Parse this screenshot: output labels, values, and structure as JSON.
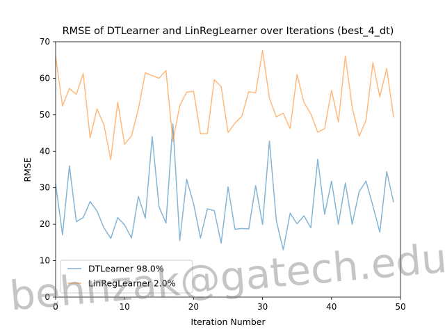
{
  "chart_data": {
    "type": "line",
    "title": "RMSE of DTLearner and LinRegLearner over Iterations (best_4_dt)",
    "xlabel": "Iteration Number",
    "ylabel": "RMSE",
    "xlim": [
      0,
      50
    ],
    "ylim": [
      0,
      70
    ],
    "xticks": [
      "0",
      "10",
      "20",
      "30",
      "40",
      "50"
    ],
    "yticks": [
      "0",
      "10",
      "20",
      "30",
      "40",
      "50",
      "60",
      "70"
    ],
    "grid": false,
    "legend_position": "lower-left",
    "watermark": "behnzak@gatech.edu",
    "x": [
      0,
      1,
      2,
      3,
      4,
      5,
      6,
      7,
      8,
      9,
      10,
      11,
      12,
      13,
      14,
      15,
      16,
      17,
      18,
      19,
      20,
      21,
      22,
      23,
      24,
      25,
      26,
      27,
      28,
      29,
      30,
      31,
      32,
      33,
      34,
      35,
      36,
      37,
      38,
      39,
      40,
      41,
      42,
      43,
      44,
      45,
      46,
      47,
      48,
      49
    ],
    "series": [
      {
        "name": "DTLearner 98.0%",
        "color": "#1f77b4",
        "values": [
          31.0,
          17.1,
          36.0,
          20.7,
          21.8,
          26.2,
          23.6,
          19.0,
          16.1,
          21.8,
          19.8,
          16.2,
          27.6,
          21.6,
          44.0,
          24.7,
          20.3,
          47.5,
          15.5,
          32.3,
          25.6,
          16.2,
          24.2,
          23.7,
          14.8,
          30.2,
          18.6,
          18.8,
          18.7,
          30.6,
          19.9,
          42.8,
          20.9,
          13.0,
          23.0,
          20.1,
          22.3,
          19.0,
          37.8,
          22.7,
          31.8,
          20.0,
          31.3,
          20.0,
          28.9,
          31.8,
          25.0,
          17.8,
          34.4,
          26.0
        ]
      },
      {
        "name": "LinRegLearner 2.0%",
        "color": "#ff7f0e",
        "values": [
          66.0,
          52.4,
          57.2,
          55.6,
          61.3,
          43.7,
          51.6,
          47.2,
          37.7,
          53.4,
          41.9,
          44.2,
          51.6,
          61.5,
          60.7,
          60.0,
          62.1,
          42.7,
          52.5,
          56.2,
          56.4,
          44.8,
          44.8,
          59.6,
          57.7,
          45.1,
          47.7,
          49.6,
          56.3,
          56.0,
          67.6,
          54.5,
          49.4,
          50.4,
          46.2,
          61.0,
          53.4,
          50.2,
          45.2,
          46.2,
          56.7,
          48.0,
          66.1,
          52.0,
          44.1,
          48.5,
          64.3,
          54.9,
          62.7,
          49.3
        ]
      }
    ]
  }
}
